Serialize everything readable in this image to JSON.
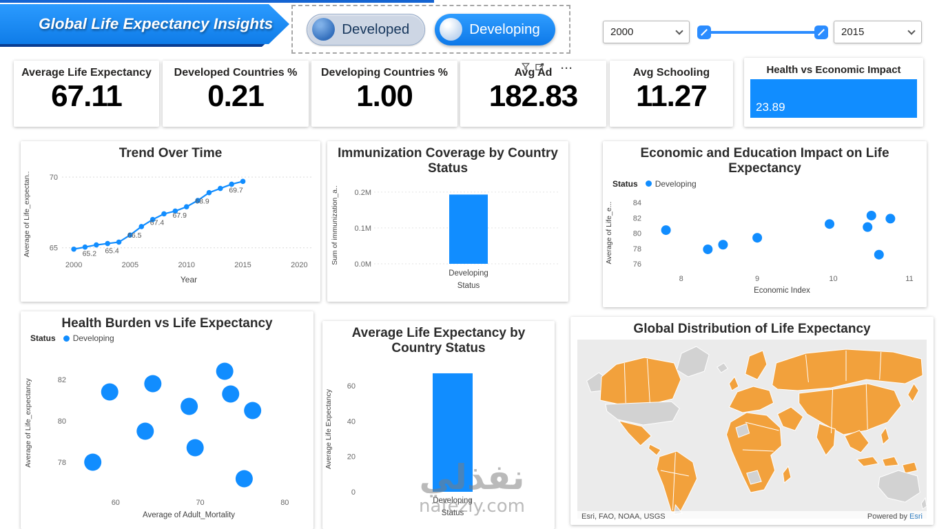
{
  "page": {
    "title": "Global Life Expectancy Insights"
  },
  "colors": {
    "accent": "#118DFF",
    "map_highlight": "#F2A13C",
    "map_muted": "#D2D2D2",
    "map_ocean": "#EBEBEB"
  },
  "slicers": {
    "status": {
      "options": [
        {
          "label": "Developed",
          "selected": false
        },
        {
          "label": "Developing",
          "selected": true
        }
      ]
    },
    "year": {
      "from": "2000",
      "to": "2015"
    }
  },
  "kpis": [
    {
      "label": "Average Life Expectancy",
      "value": "67.11"
    },
    {
      "label": "Developed Countries %",
      "value": "0.21"
    },
    {
      "label": "Developing Countries %",
      "value": "1.00"
    },
    {
      "label": "Avg Ad",
      "value": "182.83"
    },
    {
      "label": "Avg Schooling",
      "value": "11.27"
    }
  ],
  "impact": {
    "label": "Health vs Economic Impact",
    "value": "23.89"
  },
  "watermark": {
    "arabic": "نفذلي",
    "latin": "nafezly.com"
  },
  "chart_data": [
    {
      "id": "trend",
      "type": "line",
      "title": "Trend Over Time",
      "xlabel": "Year",
      "ylabel": "Average of Life_expectan..",
      "x": [
        2000,
        2001,
        2002,
        2003,
        2004,
        2005,
        2006,
        2007,
        2008,
        2009,
        2010,
        2011,
        2012,
        2013,
        2014,
        2015
      ],
      "values": [
        64.9,
        65.05,
        65.2,
        65.3,
        65.4,
        65.9,
        66.5,
        67.0,
        67.4,
        67.6,
        67.9,
        68.35,
        68.9,
        69.2,
        69.5,
        69.7
      ],
      "point_labels": [
        {
          "x": 2002,
          "label": "65.2"
        },
        {
          "x": 2004,
          "label": "65.4"
        },
        {
          "x": 2006,
          "label": "66.5"
        },
        {
          "x": 2008,
          "label": "67.4"
        },
        {
          "x": 2010,
          "label": "67.9"
        },
        {
          "x": 2012,
          "label": "68.9"
        },
        {
          "x": 2015,
          "label": "69.7"
        }
      ],
      "xticks": [
        2000,
        2005,
        2010,
        2015,
        2020
      ],
      "yticks": [
        65,
        70
      ],
      "xlim": [
        1999.2,
        2021.2
      ],
      "ylim": [
        64.4,
        70.35
      ],
      "legend_position": "none",
      "grid": true
    },
    {
      "id": "immunization",
      "type": "bar",
      "title": "Immunization Coverage by Country Status",
      "xlabel": "Status",
      "ylabel": "Sum of immunization_a..",
      "categories": [
        "Developing"
      ],
      "values": [
        0.193
      ],
      "yticks": [
        {
          "v": 0,
          "label": "0.0M"
        },
        {
          "v": 0.1,
          "label": "0.1M"
        },
        {
          "v": 0.2,
          "label": "0.2M"
        }
      ],
      "ylim": [
        0,
        0.215
      ],
      "grid": true
    },
    {
      "id": "economic",
      "type": "scatter",
      "title": "Economic and Education Impact on Life Expectancy",
      "legend": {
        "title": "Status",
        "items": [
          "Developing"
        ]
      },
      "xlabel": "Economic Index",
      "ylabel": "Average of Life_e...",
      "points": [
        [
          7.8,
          80.4
        ],
        [
          8.35,
          77.9
        ],
        [
          8.55,
          78.5
        ],
        [
          9.0,
          79.4
        ],
        [
          9.95,
          81.2
        ],
        [
          10.45,
          80.8
        ],
        [
          10.5,
          82.3
        ],
        [
          10.6,
          77.2
        ],
        [
          10.75,
          81.9
        ]
      ],
      "xticks": [
        8,
        9,
        10,
        11
      ],
      "yticks": [
        76,
        78,
        80,
        82,
        84
      ],
      "xlim": [
        7.55,
        11.1
      ],
      "ylim": [
        75.2,
        84.9
      ],
      "grid": false
    },
    {
      "id": "health",
      "type": "scatter",
      "title": "Health Burden vs Life Expectancy",
      "legend": {
        "title": "Status",
        "items": [
          "Developing"
        ]
      },
      "xlabel": "Average of Adult_Mortality",
      "ylabel": "Average of Life_expectancy",
      "points": [
        [
          57.3,
          78.0
        ],
        [
          59.3,
          81.4
        ],
        [
          63.5,
          79.5
        ],
        [
          64.4,
          81.8
        ],
        [
          68.7,
          80.7
        ],
        [
          69.4,
          78.7
        ],
        [
          72.9,
          82.4
        ],
        [
          73.6,
          81.3
        ],
        [
          75.2,
          77.2
        ],
        [
          76.2,
          80.5
        ]
      ],
      "xticks": [
        60,
        70,
        80
      ],
      "yticks": [
        78,
        80,
        82
      ],
      "xlim": [
        54.8,
        82.5
      ],
      "ylim": [
        76.5,
        83.3
      ],
      "grid": false
    },
    {
      "id": "avg_life",
      "type": "bar",
      "title": "Average Life Expectancy by Country Status",
      "xlabel": "Status",
      "ylabel": "Average Life Expectancy",
      "categories": [
        "Developing"
      ],
      "values": [
        67.11
      ],
      "yticks": [
        {
          "v": 0,
          "label": "0"
        },
        {
          "v": 20,
          "label": "20"
        },
        {
          "v": 40,
          "label": "40"
        },
        {
          "v": 60,
          "label": "60"
        }
      ],
      "ylim": [
        0,
        71
      ],
      "grid": false
    },
    {
      "id": "map",
      "type": "map",
      "title": "Global Distribution of Life Expectancy",
      "attribution": "Esri, FAO, NOAA, USGS",
      "powered_by": "Powered by",
      "powered_by_link": "Esri"
    }
  ]
}
